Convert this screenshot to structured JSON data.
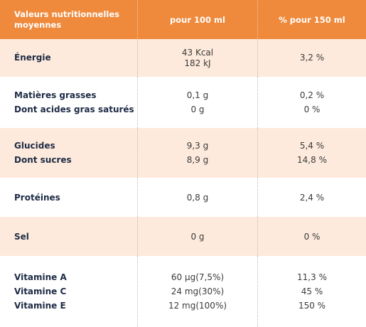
{
  "table": {
    "header": [
      "Valeurs nutritionnelles moyennes",
      "pour 100 ml",
      "% pour 150 ml"
    ],
    "rows": [
      [
        [
          "Énergie"
        ],
        [
          "43 Kcal",
          "182 kJ"
        ],
        [
          "3,2 %"
        ]
      ],
      [
        [
          "Matières grasses",
          "Dont acides gras saturés"
        ],
        [
          "0,1 g",
          "0 g"
        ],
        [
          "0,2 %",
          "0 %"
        ]
      ],
      [
        [
          "Glucides",
          "Dont sucres"
        ],
        [
          "9,3 g",
          "8,9 g"
        ],
        [
          "5,4 %",
          "14,8 %"
        ]
      ],
      [
        [
          "Protéines"
        ],
        [
          "0,8 g"
        ],
        [
          "2,4 %"
        ]
      ],
      [
        [
          "Sel"
        ],
        [
          "0 g"
        ],
        [
          "0 %"
        ]
      ],
      [
        [
          "Vitamine A",
          "Vitamine C",
          "Vitamine E"
        ],
        [
          "60 µg(7,5%)",
          "24 mg(30%)",
          "12 mg(100%)"
        ],
        [
          "11,3 %",
          "45 %",
          "150 %"
        ]
      ]
    ]
  }
}
